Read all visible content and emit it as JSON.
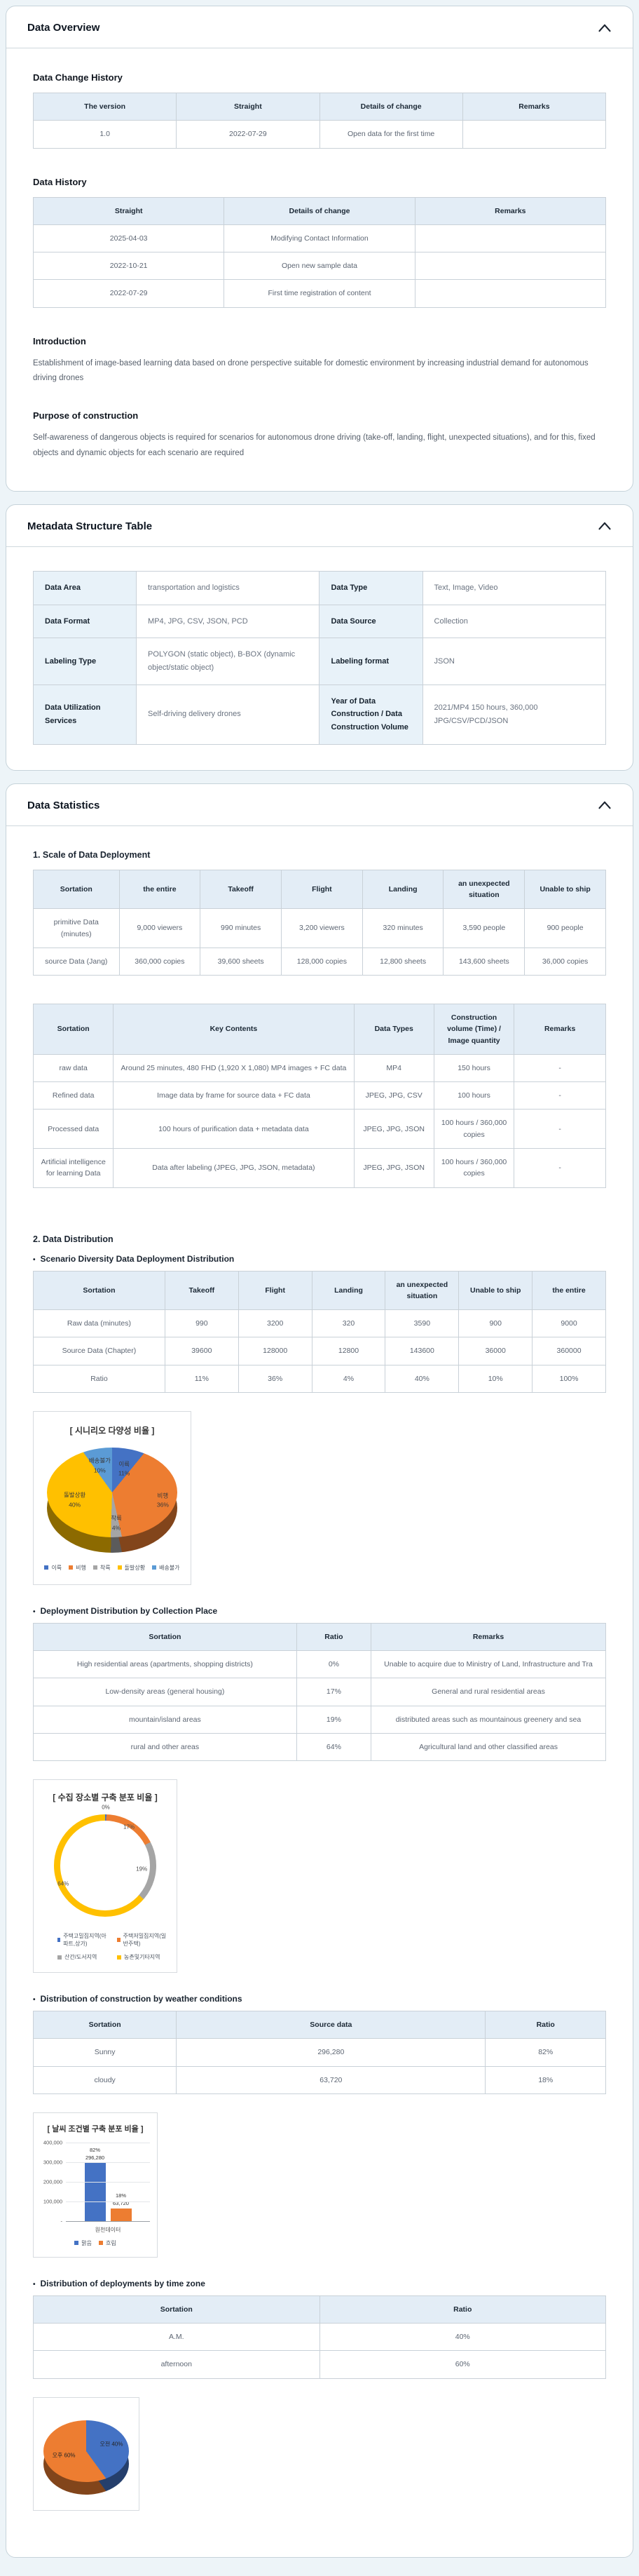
{
  "icons": {
    "collapse": "chevron-up-icon"
  },
  "overview": {
    "title": "Data Overview",
    "change_history": {
      "heading": "Data Change History",
      "table": {
        "headers": [
          "The version",
          "Straight",
          "Details of change",
          "Remarks"
        ],
        "rows": [
          [
            "1.0",
            "2022-07-29",
            "Open data for the first time",
            ""
          ]
        ]
      }
    },
    "history": {
      "heading": "Data History",
      "table": {
        "headers": [
          "Straight",
          "Details of change",
          "Remarks"
        ],
        "rows": [
          [
            "2025-04-03",
            "Modifying Contact Information",
            ""
          ],
          [
            "2022-10-21",
            "Open new sample data",
            ""
          ],
          [
            "2022-07-29",
            "First time registration of content",
            ""
          ]
        ]
      }
    },
    "introduction": {
      "heading": "Introduction",
      "body": "Establishment of image-based learning data based on drone perspective suitable for domestic environment by increasing industrial demand for autonomous driving drones"
    },
    "purpose": {
      "heading": "Purpose of construction",
      "body": "Self-awareness of dangerous objects is required for scenarios for autonomous drone driving (take-off, landing, flight, unexpected situations), and for this, fixed objects and dynamic objects for each scenario are required"
    }
  },
  "metadata": {
    "title": "Metadata Structure Table",
    "rows": [
      [
        {
          "label": "Data Area",
          "value": "transportation and logistics"
        },
        {
          "label": "Data Type",
          "value": "Text, Image, Video"
        }
      ],
      [
        {
          "label": "Data Format",
          "value": "MP4, JPG, CSV, JSON, PCD"
        },
        {
          "label": "Data Source",
          "value": "Collection"
        }
      ],
      [
        {
          "label": "Labeling Type",
          "value": "POLYGON (static object), B-BOX (dynamic object/static object)"
        },
        {
          "label": "Labeling format",
          "value": "JSON"
        }
      ],
      [
        {
          "label": "Data Utilization Services",
          "value": "Self-driving delivery drones"
        },
        {
          "label": "Year of Data Construction / Data Construction Volume",
          "value": "2021/MP4 150 hours, 360,000 JPG/CSV/PCD/JSON"
        }
      ]
    ]
  },
  "statistics": {
    "title": "Data Statistics",
    "scale": {
      "heading": "1. Scale of Data Deployment",
      "table": {
        "headers": [
          "Sortation",
          "the entire",
          "Takeoff",
          "Flight",
          "Landing",
          "an unexpected situation",
          "Unable to ship"
        ],
        "rows": [
          [
            "primitive Data (minutes)",
            "9,000 viewers",
            "990 minutes",
            "3,200 viewers",
            "320 minutes",
            "3,590 people",
            "900 people"
          ],
          [
            "source Data (Jang)",
            "360,000 copies",
            "39,600 sheets",
            "128,000 copies",
            "12,800 sheets",
            "143,600 sheets",
            "36,000 copies"
          ]
        ]
      }
    },
    "pipeline": {
      "table": {
        "headers": [
          "Sortation",
          "Key Contents",
          "Data Types",
          "Construction volume (Time) / Image quantity",
          "Remarks"
        ],
        "rows": [
          [
            "raw data",
            "Around 25 minutes, 480 FHD (1,920 X 1,080) MP4 images + FC data",
            "MP4",
            "150 hours",
            "-"
          ],
          [
            "Refined data",
            "Image data by frame for source data + FC data",
            "JPEG, JPG, CSV",
            "100 hours",
            "-"
          ],
          [
            "Processed data",
            "100 hours of purification data + metadata data",
            "JPEG, JPG, JSON",
            "100 hours / 360,000 copies",
            "-"
          ],
          [
            "Artificial intelligence for learning Data",
            "Data after labeling (JPEG, JPG, JSON, metadata)",
            "JPEG, JPG, JSON",
            "100 hours / 360,000 copies",
            "-"
          ]
        ]
      }
    },
    "distribution_heading": "2. Data Distribution",
    "scenario": {
      "bullet": "Scenario Diversity Data Deployment Distribution",
      "table": {
        "headers": [
          "Sortation",
          "Takeoff",
          "Flight",
          "Landing",
          "an unexpected situation",
          "Unable to ship",
          "the entire"
        ],
        "rows": [
          [
            "Raw data (minutes)",
            "990",
            "3200",
            "320",
            "3590",
            "900",
            "9000"
          ],
          [
            "Source Data (Chapter)",
            "39600",
            "128000",
            "12800",
            "143600",
            "36000",
            "360000"
          ],
          [
            "Ratio",
            "11%",
            "36%",
            "4%",
            "40%",
            "10%",
            "100%"
          ]
        ]
      },
      "chart": {
        "type": "pie",
        "title": "[ 시니리오 다양성 비율 ]",
        "labels": [
          "이륙",
          "비행",
          "착륙",
          "돌발상황",
          "배송불가"
        ],
        "values": [
          11,
          36,
          4,
          40,
          10
        ],
        "colors": [
          "#4472c4",
          "#ed7d31",
          "#a5a5a5",
          "#ffc000",
          "#5b9bd5"
        ],
        "slice_labels": [
          [
            "이륙",
            "11%"
          ],
          [
            "비행",
            "36%"
          ],
          [
            "착륙",
            "4%"
          ],
          [
            "돌발상황",
            "40%"
          ],
          [
            "배송불가",
            "10%"
          ]
        ],
        "label_radius": [
          0.55,
          0.8,
          0.7,
          0.6,
          0.62
        ],
        "legend": [
          "이륙",
          "비행",
          "착륙",
          "돌발상황",
          "배송불가"
        ]
      }
    },
    "collection": {
      "bullet": "Deployment Distribution by Collection Place",
      "table": {
        "headers": [
          "Sortation",
          "Ratio",
          "Remarks"
        ],
        "rows": [
          [
            "High residential areas (apartments, shopping districts)",
            "0%",
            "Unable to acquire due to Ministry of Land, Infrastructure and Tra"
          ],
          [
            "Low-density areas (general housing)",
            "17%",
            "General and rural residential areas"
          ],
          [
            "mountain/island areas",
            "19%",
            "distributed areas such as mountainous greenery and sea"
          ],
          [
            "rural and other areas",
            "64%",
            "Agricultural land and other classified areas"
          ]
        ]
      },
      "chart": {
        "type": "pie",
        "subtype": "donut",
        "title": "[ 수집 장소별 구축 분포 비율 ]",
        "labels": [
          "주택고밀집지역(아파트,상가)",
          "주택저밀집지역(일반주택)",
          "산간/도서지역",
          "농촌및기타지역"
        ],
        "values": [
          0.4,
          17,
          19,
          63.6
        ],
        "colors": [
          "#4472c4",
          "#ed7d31",
          "#a5a5a5",
          "#ffc000"
        ],
        "slice_labels": [
          "0%",
          "17%",
          "19%",
          "64%"
        ],
        "label_radius": [
          1.12,
          0.88,
          0.72,
          0.9
        ],
        "legend": [
          "주택고밀집지역(아파트,상가)",
          "주택저밀집지역(일반주택)",
          "산간/도서지역",
          "농촌및기타지역"
        ]
      }
    },
    "weather": {
      "bullet": "Distribution of construction by weather conditions",
      "table": {
        "headers": [
          "Sortation",
          "Source data",
          "Ratio"
        ],
        "rows": [
          [
            "Sunny",
            "296,280",
            "82%"
          ],
          [
            "cloudy",
            "63,720",
            "18%"
          ]
        ]
      },
      "chart": {
        "type": "bar",
        "title": "[ 날씨 조건별 구축 분포 비율 ]",
        "categories": [
          "원천데이터"
        ],
        "xlabel": "원천데이터",
        "ylim": [
          0,
          400000
        ],
        "yticks": [
          "400,000",
          "300,000",
          "200,000",
          "100,000",
          "-"
        ],
        "series": [
          {
            "name": "맑음",
            "values": [
              296280
            ],
            "color": "#4472c4"
          },
          {
            "name": "흐림",
            "values": [
              63720
            ],
            "color": "#ed7d31"
          }
        ],
        "bar_labels": [
          [
            "82%",
            "296,280"
          ],
          [
            "18%",
            "63,720"
          ]
        ]
      }
    },
    "timezone": {
      "bullet": "Distribution of deployments by time zone",
      "table": {
        "headers": [
          "Sortation",
          "Ratio"
        ],
        "rows": [
          [
            "A.M.",
            "40%"
          ],
          [
            "afternoon",
            "60%"
          ]
        ]
      },
      "chart": {
        "type": "pie",
        "labels": [
          "오전",
          "오후"
        ],
        "values": [
          40,
          60
        ],
        "colors": [
          "#4472c4",
          "#ed7d31"
        ],
        "slice_labels": [
          "오전 40%",
          "오후 60%"
        ],
        "label_radius": [
          0.62,
          0.55
        ]
      }
    }
  }
}
